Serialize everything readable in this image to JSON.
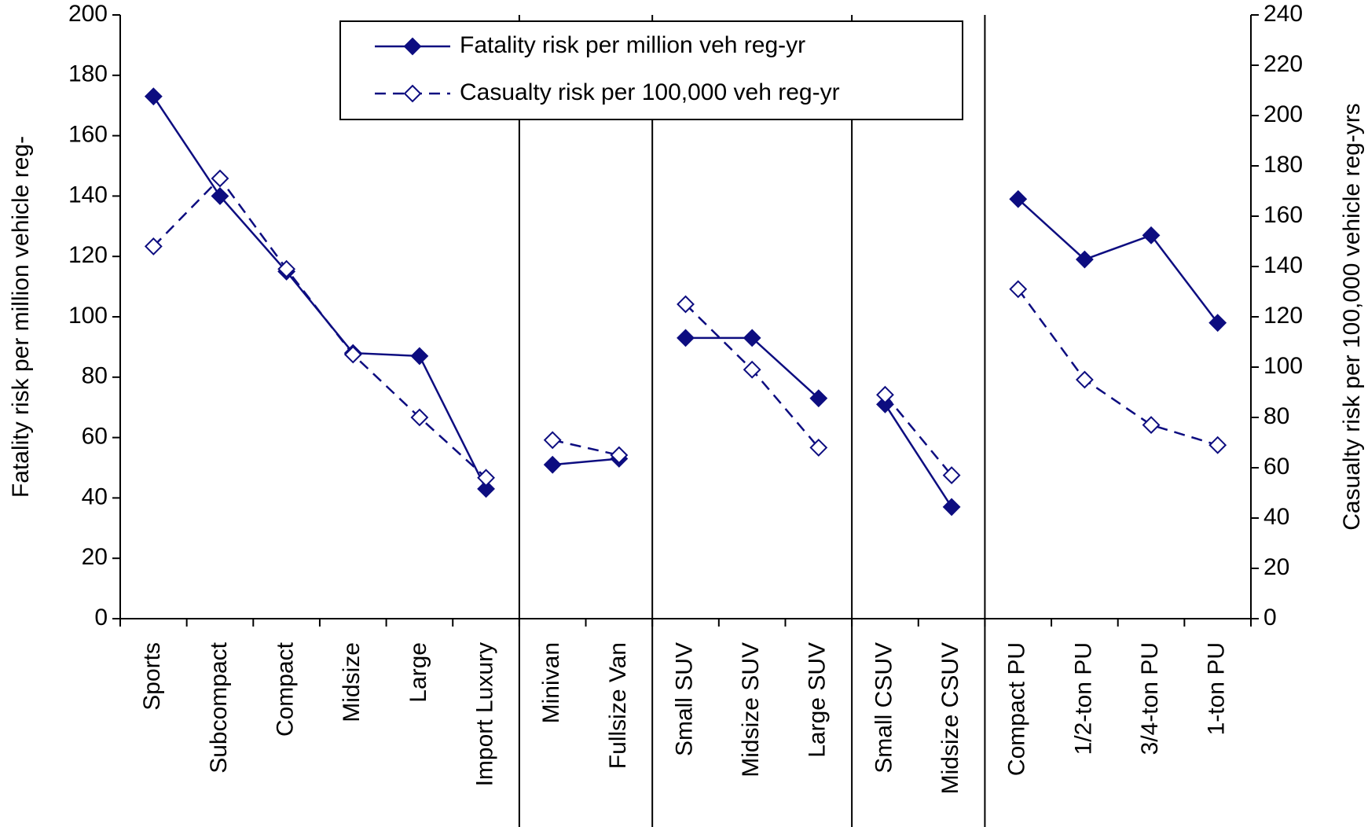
{
  "chart_data": {
    "type": "line",
    "y_label": "Fatality risk per million vehicle reg-",
    "y2_label": "Casualty risk per 100,000 vehicle reg-yrs",
    "categories": [
      "Sports",
      "Subcompact",
      "Compact",
      "Midsize",
      "Large",
      "Import Luxury",
      "Minivan",
      "Fullsize Van",
      "Small SUV",
      "Midsize SUV",
      "Large SUV",
      "Small CSUV",
      "Midsize CSUV",
      "Compact PU",
      "1/2-ton PU",
      "3/4-ton PU",
      "1-ton PU"
    ],
    "group_breaks_after": [
      5,
      7,
      10,
      12
    ],
    "series": [
      {
        "name": "Fatality risk per million veh reg-yr",
        "color": "#0d0d80",
        "marker": "filled-diamond",
        "dash": false,
        "values": [
          173,
          140,
          115,
          88,
          87,
          43,
          51,
          53,
          93,
          93,
          73,
          71,
          37,
          139,
          119,
          127,
          98
        ]
      },
      {
        "name": "Casualty risk per 100,000 veh reg-yr",
        "color": "#0d0d80",
        "marker": "open-diamond",
        "dash": true,
        "axis": "y2",
        "values": [
          148,
          175,
          139,
          105,
          80,
          56,
          71,
          65,
          125,
          99,
          68,
          89,
          57,
          131,
          95,
          77,
          69
        ]
      }
    ],
    "ylim": [
      0,
      200
    ],
    "yticks": [
      0,
      20,
      40,
      60,
      80,
      100,
      120,
      140,
      160,
      180,
      200
    ],
    "y2lim": [
      0,
      240
    ],
    "y2ticks": [
      0,
      20,
      40,
      60,
      80,
      100,
      120,
      140,
      160,
      180,
      200,
      220,
      240
    ],
    "grid": false,
    "legend": "top"
  }
}
